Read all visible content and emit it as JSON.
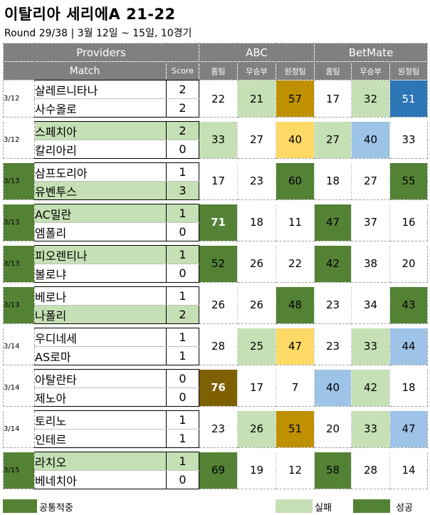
{
  "title": "이탈리아 세리에A 21-22",
  "subtitle": "Round 29/38 | 3월 12일 ~ 15일, 10경기",
  "header": {
    "providers": "Providers",
    "match": "Match",
    "score": "Score",
    "abc": "ABC",
    "betmate": "BetMate",
    "sub": [
      "홈팀",
      "무승부",
      "원정팀",
      "홈팀",
      "무승부",
      "원정팀"
    ]
  },
  "colors": {
    "success": "#548235",
    "fail_light": "#c5e0b4",
    "gold": "#bf9000",
    "yellow": "#ffd966",
    "light_blue": "#9dc3e6",
    "blue": "#2e75b6",
    "olive": "#7f6000",
    "header_gray": "#808080"
  },
  "matches": [
    {
      "date": "3/12",
      "date_hl": false,
      "home": "살레르니타나",
      "away": "사수올로",
      "hs": "2",
      "as": "2",
      "home_hl": false,
      "away_hl": false,
      "abc": [
        "22",
        "21",
        "57"
      ],
      "bet": [
        "17",
        "32",
        "51"
      ],
      "abc_c": [
        "",
        "fail_light",
        "gold"
      ],
      "bet_c": [
        "",
        "fail_light",
        "blue"
      ],
      "abc_w": [
        "",
        "",
        ""
      ],
      "bet_w": [
        "",
        "",
        "w"
      ]
    },
    {
      "date": "3/12",
      "date_hl": false,
      "home": "스페치아",
      "away": "칼리아리",
      "hs": "2",
      "as": "0",
      "home_hl": true,
      "away_hl": false,
      "abc": [
        "33",
        "27",
        "40"
      ],
      "bet": [
        "27",
        "40",
        "33"
      ],
      "abc_c": [
        "fail_light",
        "",
        "yellow"
      ],
      "bet_c": [
        "fail_light",
        "light_blue",
        ""
      ],
      "abc_w": [
        "",
        "",
        ""
      ],
      "bet_w": [
        "",
        "",
        ""
      ]
    },
    {
      "date": "3/13",
      "date_hl": true,
      "home": "삼프도리아",
      "away": "유벤투스",
      "hs": "1",
      "as": "3",
      "home_hl": false,
      "away_hl": true,
      "abc": [
        "17",
        "23",
        "60"
      ],
      "bet": [
        "18",
        "27",
        "55"
      ],
      "abc_c": [
        "",
        "",
        "success"
      ],
      "bet_c": [
        "",
        "",
        "success"
      ],
      "abc_w": [
        "",
        "",
        ""
      ],
      "bet_w": [
        "",
        "",
        ""
      ]
    },
    {
      "date": "3/13",
      "date_hl": true,
      "home": "AC밀란",
      "away": "엠폴리",
      "hs": "1",
      "as": "0",
      "home_hl": true,
      "away_hl": false,
      "abc": [
        "71",
        "18",
        "11"
      ],
      "bet": [
        "47",
        "37",
        "16"
      ],
      "abc_c": [
        "success",
        "",
        ""
      ],
      "bet_c": [
        "success",
        "",
        ""
      ],
      "abc_w": [
        "wb",
        "",
        ""
      ],
      "bet_w": [
        "",
        "",
        ""
      ]
    },
    {
      "date": "3/13",
      "date_hl": true,
      "home": "피오렌티나",
      "away": "볼로냐",
      "hs": "1",
      "as": "0",
      "home_hl": true,
      "away_hl": false,
      "abc": [
        "52",
        "26",
        "22"
      ],
      "bet": [
        "42",
        "38",
        "20"
      ],
      "abc_c": [
        "success",
        "",
        ""
      ],
      "bet_c": [
        "success",
        "",
        ""
      ],
      "abc_w": [
        "",
        "",
        ""
      ],
      "bet_w": [
        "",
        "",
        ""
      ]
    },
    {
      "date": "3/13",
      "date_hl": true,
      "home": "베로나",
      "away": "나폴리",
      "hs": "1",
      "as": "2",
      "home_hl": false,
      "away_hl": true,
      "abc": [
        "26",
        "26",
        "48"
      ],
      "bet": [
        "23",
        "34",
        "43"
      ],
      "abc_c": [
        "",
        "",
        "success"
      ],
      "bet_c": [
        "",
        "",
        "success"
      ],
      "abc_w": [
        "",
        "",
        ""
      ],
      "bet_w": [
        "",
        "",
        ""
      ]
    },
    {
      "date": "3/14",
      "date_hl": false,
      "home": "우디네세",
      "away": "AS로마",
      "hs": "1",
      "as": "1",
      "home_hl": false,
      "away_hl": false,
      "abc": [
        "28",
        "25",
        "47"
      ],
      "bet": [
        "23",
        "33",
        "44"
      ],
      "abc_c": [
        "",
        "fail_light",
        "yellow"
      ],
      "bet_c": [
        "",
        "fail_light",
        "light_blue"
      ],
      "abc_w": [
        "",
        "",
        ""
      ],
      "bet_w": [
        "",
        "",
        ""
      ]
    },
    {
      "date": "3/14",
      "date_hl": false,
      "home": "아탈란타",
      "away": "제노아",
      "hs": "0",
      "as": "0",
      "home_hl": false,
      "away_hl": false,
      "abc": [
        "76",
        "17",
        "7"
      ],
      "bet": [
        "40",
        "42",
        "18"
      ],
      "abc_c": [
        "olive",
        "",
        ""
      ],
      "bet_c": [
        "light_blue",
        "fail_light",
        ""
      ],
      "abc_w": [
        "wb",
        "",
        ""
      ],
      "bet_w": [
        "",
        "",
        ""
      ]
    },
    {
      "date": "3/14",
      "date_hl": false,
      "home": "토리노",
      "away": "인테르",
      "hs": "1",
      "as": "1",
      "home_hl": false,
      "away_hl": false,
      "abc": [
        "23",
        "26",
        "51"
      ],
      "bet": [
        "20",
        "33",
        "47"
      ],
      "abc_c": [
        "",
        "fail_light",
        "gold"
      ],
      "bet_c": [
        "",
        "fail_light",
        "light_blue"
      ],
      "abc_w": [
        "",
        "",
        ""
      ],
      "bet_w": [
        "",
        "",
        ""
      ]
    },
    {
      "date": "3/15",
      "date_hl": true,
      "home": "라치오",
      "away": "베네치아",
      "hs": "1",
      "as": "0",
      "home_hl": true,
      "away_hl": false,
      "abc": [
        "69",
        "19",
        "12"
      ],
      "bet": [
        "58",
        "28",
        "14"
      ],
      "abc_c": [
        "success",
        "",
        ""
      ],
      "bet_c": [
        "success",
        "",
        ""
      ],
      "abc_w": [
        "",
        "",
        ""
      ],
      "bet_w": [
        "",
        "",
        ""
      ]
    }
  ],
  "legend": {
    "common": "공통적중",
    "fail": "실패",
    "success": "성공"
  }
}
